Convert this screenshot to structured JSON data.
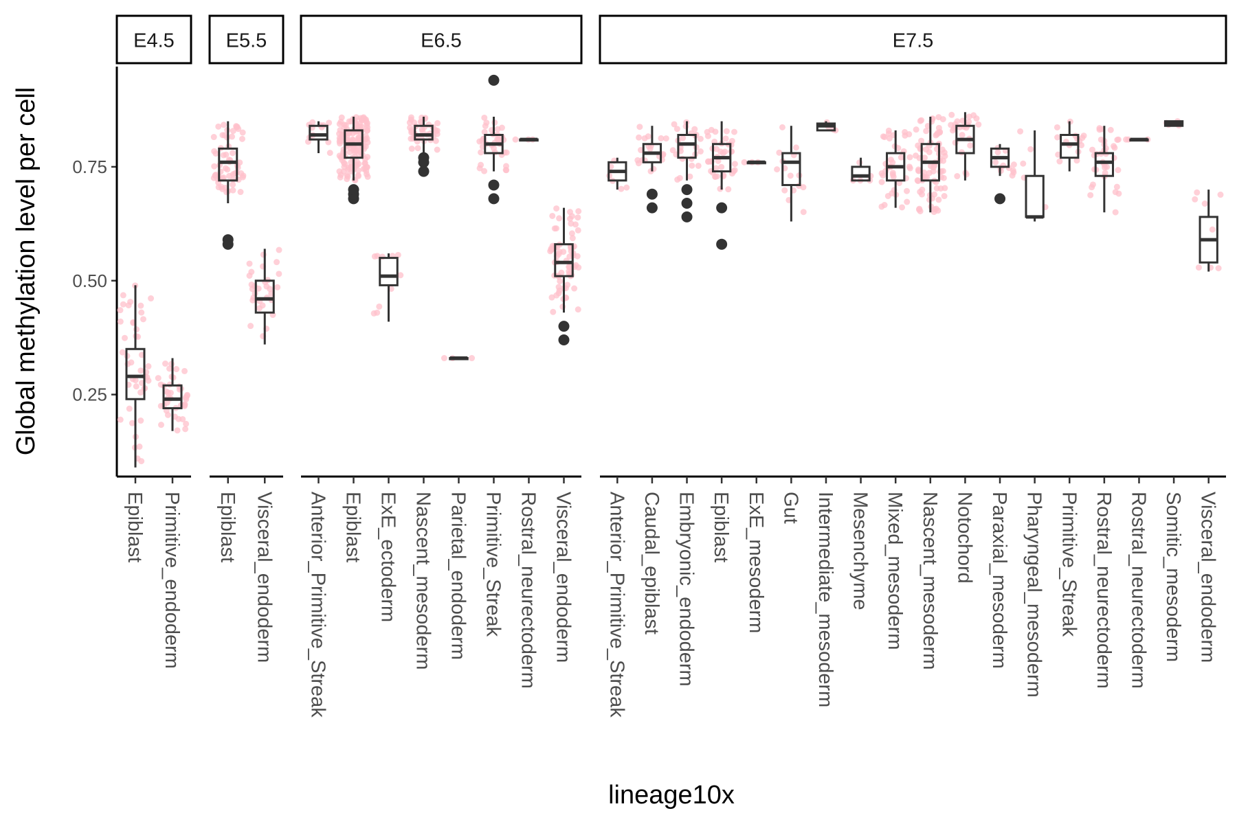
{
  "chart_data": {
    "type": "box",
    "xlabel": "lineage10x",
    "ylabel": "Global methylation level per cell",
    "ylim": [
      0.07,
      0.97
    ],
    "yticks": [
      0.25,
      0.5,
      0.75
    ],
    "ytick_labels": [
      "0.25",
      "0.50",
      "0.75"
    ],
    "grid": false,
    "point_color": "#FFC0CB",
    "box_color": "#333333",
    "outlier_color": "#333333",
    "panels": [
      {
        "stage": "E4.5",
        "boxes": [
          {
            "category": "Epiblast",
            "min": 0.09,
            "q1": 0.24,
            "median": 0.29,
            "q3": 0.35,
            "max": 0.49,
            "outliers": [],
            "n": 45
          },
          {
            "category": "Primitive_endoderm",
            "min": 0.17,
            "q1": 0.22,
            "median": 0.24,
            "q3": 0.27,
            "max": 0.33,
            "outliers": [],
            "n": 40
          }
        ]
      },
      {
        "stage": "E5.5",
        "boxes": [
          {
            "category": "Epiblast",
            "min": 0.67,
            "q1": 0.72,
            "median": 0.76,
            "q3": 0.79,
            "max": 0.85,
            "outliers": [
              0.58,
              0.59
            ],
            "n": 60
          },
          {
            "category": "Visceral_endoderm",
            "min": 0.36,
            "q1": 0.43,
            "median": 0.46,
            "q3": 0.5,
            "max": 0.57,
            "outliers": [],
            "n": 30
          }
        ]
      },
      {
        "stage": "E6.5",
        "boxes": [
          {
            "category": "Anterior_Primitive_Streak",
            "min": 0.78,
            "q1": 0.81,
            "median": 0.82,
            "q3": 0.84,
            "max": 0.85,
            "outliers": [],
            "n": 12
          },
          {
            "category": "Epiblast",
            "min": 0.72,
            "q1": 0.77,
            "median": 0.8,
            "q3": 0.83,
            "max": 0.86,
            "outliers": [
              0.68,
              0.69,
              0.7
            ],
            "n": 150
          },
          {
            "category": "ExE_ectoderm",
            "min": 0.41,
            "q1": 0.49,
            "median": 0.51,
            "q3": 0.55,
            "max": 0.56,
            "outliers": [],
            "n": 10
          },
          {
            "category": "Nascent_mesoderm",
            "min": 0.78,
            "q1": 0.81,
            "median": 0.82,
            "q3": 0.84,
            "max": 0.86,
            "outliers": [
              0.74,
              0.76,
              0.77
            ],
            "n": 40
          },
          {
            "category": "Parietal_endoderm",
            "min": 0.33,
            "q1": 0.33,
            "median": 0.33,
            "q3": 0.33,
            "max": 0.33,
            "outliers": [],
            "n": 3
          },
          {
            "category": "Primitive_Streak",
            "min": 0.74,
            "q1": 0.78,
            "median": 0.8,
            "q3": 0.82,
            "max": 0.86,
            "outliers": [
              0.94,
              0.71,
              0.68
            ],
            "n": 35
          },
          {
            "category": "Rostral_neurectoderm",
            "min": 0.81,
            "q1": 0.81,
            "median": 0.81,
            "q3": 0.81,
            "max": 0.81,
            "outliers": [],
            "n": 3
          },
          {
            "category": "Visceral_endoderm",
            "min": 0.43,
            "q1": 0.51,
            "median": 0.54,
            "q3": 0.58,
            "max": 0.66,
            "outliers": [
              0.4,
              0.37
            ],
            "n": 70
          }
        ]
      },
      {
        "stage": "E7.5",
        "boxes": [
          {
            "category": "Anterior_Primitive_Streak",
            "min": 0.7,
            "q1": 0.72,
            "median": 0.74,
            "q3": 0.76,
            "max": 0.77,
            "outliers": [],
            "n": 6
          },
          {
            "category": "Caudal_epiblast",
            "min": 0.74,
            "q1": 0.76,
            "median": 0.78,
            "q3": 0.8,
            "max": 0.84,
            "outliers": [
              0.69,
              0.66
            ],
            "n": 20
          },
          {
            "category": "Embryonic_endoderm",
            "min": 0.72,
            "q1": 0.77,
            "median": 0.8,
            "q3": 0.82,
            "max": 0.85,
            "outliers": [
              0.7,
              0.67,
              0.64
            ],
            "n": 25
          },
          {
            "category": "Epiblast",
            "min": 0.7,
            "q1": 0.74,
            "median": 0.77,
            "q3": 0.8,
            "max": 0.85,
            "outliers": [
              0.66,
              0.58
            ],
            "n": 40
          },
          {
            "category": "ExE_mesoderm",
            "min": 0.76,
            "q1": 0.76,
            "median": 0.76,
            "q3": 0.76,
            "max": 0.76,
            "outliers": [],
            "n": 3
          },
          {
            "category": "Gut",
            "min": 0.63,
            "q1": 0.71,
            "median": 0.76,
            "q3": 0.78,
            "max": 0.84,
            "outliers": [],
            "n": 15
          },
          {
            "category": "Intermediate_mesoderm",
            "min": 0.83,
            "q1": 0.83,
            "median": 0.84,
            "q3": 0.845,
            "max": 0.85,
            "outliers": [],
            "n": 4
          },
          {
            "category": "Mesenchyme",
            "min": 0.72,
            "q1": 0.72,
            "median": 0.73,
            "q3": 0.75,
            "max": 0.77,
            "outliers": [],
            "n": 5
          },
          {
            "category": "Mixed_mesoderm",
            "min": 0.66,
            "q1": 0.72,
            "median": 0.75,
            "q3": 0.78,
            "max": 0.83,
            "outliers": [],
            "n": 40
          },
          {
            "category": "Nascent_mesoderm",
            "min": 0.65,
            "q1": 0.72,
            "median": 0.76,
            "q3": 0.8,
            "max": 0.86,
            "outliers": [],
            "n": 80
          },
          {
            "category": "Notochord",
            "min": 0.72,
            "q1": 0.78,
            "median": 0.81,
            "q3": 0.84,
            "max": 0.87,
            "outliers": [],
            "n": 25
          },
          {
            "category": "Paraxial_mesoderm",
            "min": 0.73,
            "q1": 0.75,
            "median": 0.77,
            "q3": 0.79,
            "max": 0.8,
            "outliers": [
              0.68
            ],
            "n": 12
          },
          {
            "category": "Pharyngeal_mesoderm",
            "min": 0.63,
            "q1": 0.64,
            "median": 0.64,
            "q3": 0.73,
            "max": 0.83,
            "outliers": [],
            "n": 5
          },
          {
            "category": "Primitive_Streak",
            "min": 0.74,
            "q1": 0.77,
            "median": 0.8,
            "q3": 0.82,
            "max": 0.85,
            "outliers": [],
            "n": 15
          },
          {
            "category": "Rostral_neurectoderm",
            "min": 0.65,
            "q1": 0.73,
            "median": 0.76,
            "q3": 0.78,
            "max": 0.84,
            "outliers": [],
            "n": 35
          },
          {
            "category": "Rostral_neurectoderm",
            "min": 0.81,
            "q1": 0.81,
            "median": 0.81,
            "q3": 0.81,
            "max": 0.81,
            "outliers": [],
            "n": 3
          },
          {
            "category": "Somitic_mesoderm",
            "min": 0.84,
            "q1": 0.84,
            "median": 0.845,
            "q3": 0.85,
            "max": 0.85,
            "outliers": [],
            "n": 4
          },
          {
            "category": "Visceral_endoderm",
            "min": 0.52,
            "q1": 0.54,
            "median": 0.59,
            "q3": 0.64,
            "max": 0.7,
            "outliers": [],
            "n": 8
          }
        ]
      }
    ]
  }
}
